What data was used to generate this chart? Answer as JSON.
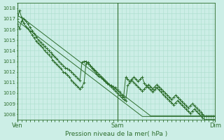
{
  "title": "Pression niveau de la mer( hPa )",
  "bg_color": "#cceee6",
  "grid_color": "#aaddcc",
  "line_color": "#2d6e2d",
  "ylim": [
    1007.5,
    1018.5
  ],
  "yticks": [
    1008,
    1009,
    1010,
    1011,
    1012,
    1013,
    1014,
    1015,
    1016,
    1017,
    1018
  ],
  "xtick_labels": [
    "Ven",
    "Sam",
    "Dim"
  ],
  "xtick_positions": [
    0,
    48,
    95
  ],
  "n_points": 96,
  "line_smooth1": [
    1017.3,
    1017.2,
    1017.1,
    1017.0,
    1016.85,
    1016.7,
    1016.55,
    1016.4,
    1016.25,
    1016.1,
    1015.95,
    1015.8,
    1015.65,
    1015.5,
    1015.35,
    1015.2,
    1015.05,
    1014.9,
    1014.75,
    1014.6,
    1014.45,
    1014.3,
    1014.15,
    1014.0,
    1013.85,
    1013.7,
    1013.55,
    1013.4,
    1013.25,
    1013.1,
    1012.95,
    1012.8,
    1012.65,
    1012.5,
    1012.35,
    1012.2,
    1012.05,
    1011.9,
    1011.75,
    1011.6,
    1011.45,
    1011.3,
    1011.15,
    1011.0,
    1010.85,
    1010.7,
    1010.55,
    1010.4,
    1010.25,
    1010.1,
    1009.95,
    1009.8,
    1009.65,
    1009.5,
    1009.35,
    1009.2,
    1009.05,
    1008.9,
    1008.75,
    1008.6,
    1008.45,
    1008.3,
    1008.15,
    1008.0,
    1007.85,
    1007.85,
    1007.85,
    1007.85,
    1007.85,
    1007.85,
    1007.85,
    1007.85,
    1007.85,
    1007.85,
    1007.85,
    1007.85,
    1007.85,
    1007.85,
    1007.85,
    1007.85,
    1007.85,
    1007.85,
    1007.85,
    1007.85,
    1007.85,
    1007.85,
    1007.85,
    1007.85,
    1007.85,
    1007.85,
    1007.85,
    1007.85,
    1007.85,
    1007.85,
    1007.85,
    1007.85
  ],
  "line_smooth2": [
    1016.8,
    1016.65,
    1016.5,
    1016.35,
    1016.2,
    1016.05,
    1015.9,
    1015.75,
    1015.6,
    1015.45,
    1015.3,
    1015.15,
    1015.0,
    1014.85,
    1014.7,
    1014.55,
    1014.4,
    1014.25,
    1014.1,
    1013.95,
    1013.8,
    1013.65,
    1013.5,
    1013.35,
    1013.2,
    1013.05,
    1012.9,
    1012.75,
    1012.6,
    1012.45,
    1012.3,
    1012.15,
    1012.0,
    1011.85,
    1011.7,
    1011.55,
    1011.4,
    1011.25,
    1011.1,
    1010.95,
    1010.8,
    1010.65,
    1010.5,
    1010.35,
    1010.2,
    1010.05,
    1009.9,
    1009.75,
    1009.6,
    1009.45,
    1009.3,
    1009.15,
    1009.0,
    1008.85,
    1008.7,
    1008.55,
    1008.4,
    1008.25,
    1008.1,
    1007.95,
    1007.8,
    1007.8,
    1007.8,
    1007.8,
    1007.8,
    1007.8,
    1007.8,
    1007.8,
    1007.8,
    1007.8,
    1007.8,
    1007.8,
    1007.8,
    1007.8,
    1007.8,
    1007.8,
    1007.8,
    1007.8,
    1007.8,
    1007.8,
    1007.8,
    1007.8,
    1007.8,
    1007.8,
    1007.8,
    1007.8,
    1007.8,
    1007.8,
    1007.8,
    1007.8,
    1007.8,
    1007.8,
    1007.8,
    1007.8,
    1007.8,
    1007.8
  ],
  "line_marker1": [
    1017.0,
    1017.8,
    1017.1,
    1016.6,
    1016.3,
    1016.1,
    1015.8,
    1015.5,
    1015.2,
    1014.9,
    1014.7,
    1014.5,
    1014.3,
    1014.0,
    1013.8,
    1013.6,
    1013.4,
    1013.1,
    1012.9,
    1012.7,
    1012.5,
    1012.3,
    1012.0,
    1011.9,
    1011.7,
    1011.5,
    1011.2,
    1011.0,
    1010.8,
    1010.6,
    1010.4,
    1010.6,
    1011.0,
    1012.8,
    1012.9,
    1012.6,
    1012.3,
    1012.1,
    1011.8,
    1011.6,
    1011.5,
    1011.3,
    1011.1,
    1010.9,
    1010.8,
    1010.7,
    1010.6,
    1010.5,
    1010.3,
    1010.1,
    1009.8,
    1009.6,
    1011.5,
    1011.3,
    1011.1,
    1011.3,
    1011.5,
    1011.3,
    1011.1,
    1011.3,
    1011.5,
    1010.9,
    1010.7,
    1010.5,
    1010.3,
    1010.1,
    1010.3,
    1010.5,
    1010.3,
    1010.1,
    1009.9,
    1009.7,
    1009.5,
    1009.3,
    1009.1,
    1008.9,
    1009.1,
    1009.3,
    1009.1,
    1008.9,
    1008.7,
    1008.5,
    1008.3,
    1008.1,
    1008.3,
    1008.5,
    1008.3,
    1008.1,
    1007.9,
    1007.7,
    1007.5,
    1007.5,
    1007.5,
    1007.5,
    1007.5,
    1007.5
  ],
  "line_marker2": [
    1016.5,
    1016.1,
    1016.8,
    1017.0,
    1016.8,
    1016.5,
    1016.2,
    1015.9,
    1015.6,
    1015.3,
    1015.0,
    1014.8,
    1014.6,
    1014.4,
    1014.2,
    1014.0,
    1013.8,
    1013.6,
    1013.4,
    1013.2,
    1013.0,
    1012.8,
    1012.6,
    1012.4,
    1012.3,
    1012.2,
    1012.0,
    1011.8,
    1011.6,
    1011.4,
    1011.2,
    1012.9,
    1013.0,
    1013.0,
    1012.8,
    1012.6,
    1012.4,
    1012.2,
    1012.0,
    1011.8,
    1011.6,
    1011.4,
    1011.2,
    1011.0,
    1010.8,
    1010.6,
    1010.4,
    1010.2,
    1010.0,
    1009.8,
    1009.6,
    1009.4,
    1009.3,
    1010.7,
    1011.0,
    1011.2,
    1011.0,
    1010.8,
    1010.6,
    1010.4,
    1010.2,
    1010.4,
    1010.6,
    1010.8,
    1010.6,
    1010.4,
    1010.6,
    1010.8,
    1010.6,
    1010.4,
    1010.2,
    1010.0,
    1009.8,
    1009.6,
    1009.4,
    1009.6,
    1009.8,
    1009.6,
    1009.4,
    1009.2,
    1009.0,
    1008.8,
    1008.6,
    1008.8,
    1009.0,
    1008.8,
    1008.6,
    1008.4,
    1008.2,
    1008.0,
    1007.8,
    1007.8,
    1007.8,
    1007.8,
    1007.8,
    1007.8
  ]
}
